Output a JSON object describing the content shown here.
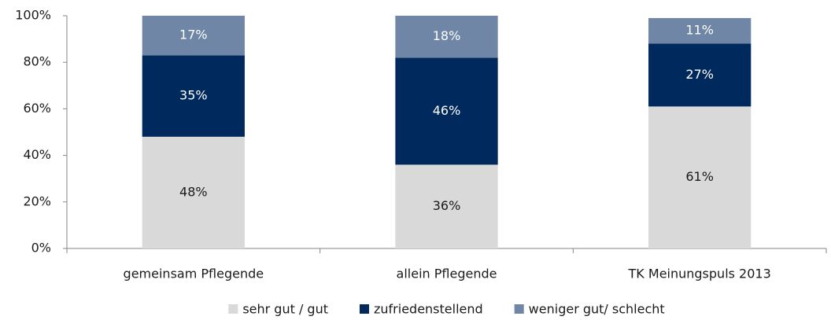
{
  "chart_data": {
    "type": "stacked_bar",
    "categories": [
      "gemeinsam Pflegende",
      "allein Pflegende",
      "TK Meinungspuls 2013"
    ],
    "series": [
      {
        "name": "sehr gut / gut",
        "color": "#d9d9d9",
        "values": [
          48,
          36,
          61
        ],
        "value_labels": [
          "48%",
          "36%",
          "61%"
        ]
      },
      {
        "name": "zufriedenstellend",
        "color": "#002a5e",
        "values": [
          35,
          46,
          27
        ],
        "value_labels": [
          "35%",
          "46%",
          "27%"
        ]
      },
      {
        "name": "weniger gut/ schlecht",
        "color": "#6f86a7",
        "values": [
          17,
          18,
          11
        ],
        "value_labels": [
          "17%",
          "18%",
          "11%"
        ]
      }
    ],
    "ylim": [
      0,
      100
    ],
    "yticks": [
      {
        "value": 0,
        "label": "0%"
      },
      {
        "value": 20,
        "label": "20%"
      },
      {
        "value": 40,
        "label": "40%"
      },
      {
        "value": 60,
        "label": "60%"
      },
      {
        "value": 80,
        "label": "80%"
      },
      {
        "value": 100,
        "label": "100%"
      }
    ],
    "legend": "bottom"
  }
}
